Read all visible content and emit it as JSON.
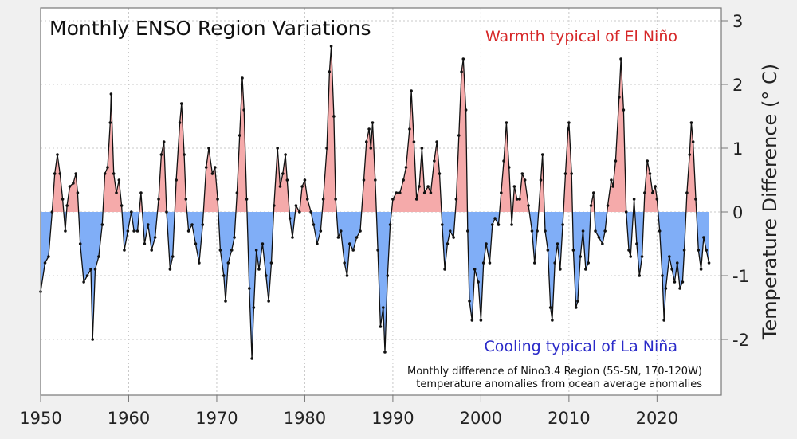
{
  "chart_data": {
    "type": "area",
    "title": "Monthly ENSO Region Variations",
    "ylabel": "Temperature Difference (° C)",
    "xlabel": "",
    "xlim": [
      1950,
      2027.3
    ],
    "ylim": [
      -2.875,
      3.2
    ],
    "grid": true,
    "x_ticks": [
      "1950",
      "1960",
      "1970",
      "1980",
      "1990",
      "2000",
      "2010",
      "2020"
    ],
    "y_ticks": [
      "-2",
      "-1",
      "0",
      "1",
      "2",
      "3"
    ],
    "annotations": {
      "warm": "Warmth typical of El Niño",
      "cool": "Cooling typical of La Niña",
      "note_line1": "Monthly difference of Nino3.4 Region (5S-5N, 170-120W)",
      "note_line2": "temperature anomalies from ocean average anomalies"
    },
    "colors": {
      "warm_fill": "#f5aaaa",
      "cool_fill": "#80aef7",
      "line": "#111111",
      "warm_text": "#d62728",
      "cool_text": "#2a2ac8"
    },
    "points": [
      [
        1950.0,
        -1.25
      ],
      [
        1950.5,
        -0.8
      ],
      [
        1950.9,
        -0.7
      ],
      [
        1951.3,
        0.0
      ],
      [
        1951.6,
        0.6
      ],
      [
        1951.9,
        0.9
      ],
      [
        1952.2,
        0.6
      ],
      [
        1952.5,
        0.2
      ],
      [
        1952.8,
        -0.3
      ],
      [
        1953.0,
        0.1
      ],
      [
        1953.3,
        0.4
      ],
      [
        1953.7,
        0.45
      ],
      [
        1954.0,
        0.6
      ],
      [
        1954.2,
        0.3
      ],
      [
        1954.5,
        -0.5
      ],
      [
        1954.9,
        -1.1
      ],
      [
        1955.3,
        -1.0
      ],
      [
        1955.7,
        -0.9
      ],
      [
        1955.9,
        -2.0
      ],
      [
        1956.2,
        -0.9
      ],
      [
        1956.6,
        -0.7
      ],
      [
        1957.0,
        -0.2
      ],
      [
        1957.3,
        0.6
      ],
      [
        1957.6,
        0.7
      ],
      [
        1957.9,
        1.4
      ],
      [
        1958.0,
        1.85
      ],
      [
        1958.3,
        0.6
      ],
      [
        1958.6,
        0.3
      ],
      [
        1958.9,
        0.5
      ],
      [
        1959.2,
        0.1
      ],
      [
        1959.5,
        -0.6
      ],
      [
        1959.9,
        -0.3
      ],
      [
        1960.3,
        0.0
      ],
      [
        1960.6,
        -0.3
      ],
      [
        1961.0,
        -0.3
      ],
      [
        1961.4,
        0.3
      ],
      [
        1961.8,
        -0.5
      ],
      [
        1962.2,
        -0.2
      ],
      [
        1962.6,
        -0.6
      ],
      [
        1963.0,
        -0.4
      ],
      [
        1963.4,
        0.2
      ],
      [
        1963.7,
        0.9
      ],
      [
        1964.0,
        1.1
      ],
      [
        1964.3,
        0.0
      ],
      [
        1964.7,
        -0.9
      ],
      [
        1965.0,
        -0.7
      ],
      [
        1965.4,
        0.5
      ],
      [
        1965.8,
        1.4
      ],
      [
        1966.0,
        1.7
      ],
      [
        1966.3,
        0.9
      ],
      [
        1966.5,
        0.2
      ],
      [
        1966.8,
        -0.3
      ],
      [
        1967.2,
        -0.2
      ],
      [
        1967.6,
        -0.5
      ],
      [
        1968.0,
        -0.8
      ],
      [
        1968.4,
        -0.2
      ],
      [
        1968.8,
        0.7
      ],
      [
        1969.1,
        1.0
      ],
      [
        1969.5,
        0.6
      ],
      [
        1969.8,
        0.7
      ],
      [
        1970.1,
        0.2
      ],
      [
        1970.4,
        -0.6
      ],
      [
        1970.8,
        -1.0
      ],
      [
        1971.0,
        -1.4
      ],
      [
        1971.3,
        -0.8
      ],
      [
        1971.7,
        -0.6
      ],
      [
        1972.0,
        -0.4
      ],
      [
        1972.3,
        0.3
      ],
      [
        1972.6,
        1.2
      ],
      [
        1972.9,
        2.1
      ],
      [
        1973.1,
        1.6
      ],
      [
        1973.4,
        0.2
      ],
      [
        1973.7,
        -1.2
      ],
      [
        1974.0,
        -2.3
      ],
      [
        1974.2,
        -1.5
      ],
      [
        1974.5,
        -0.6
      ],
      [
        1974.8,
        -0.9
      ],
      [
        1975.2,
        -0.5
      ],
      [
        1975.6,
        -1.0
      ],
      [
        1975.9,
        -1.4
      ],
      [
        1976.2,
        -0.8
      ],
      [
        1976.5,
        0.1
      ],
      [
        1976.9,
        1.0
      ],
      [
        1977.2,
        0.4
      ],
      [
        1977.5,
        0.6
      ],
      [
        1977.8,
        0.9
      ],
      [
        1978.0,
        0.5
      ],
      [
        1978.3,
        -0.1
      ],
      [
        1978.6,
        -0.4
      ],
      [
        1979.0,
        0.1
      ],
      [
        1979.4,
        0.0
      ],
      [
        1979.7,
        0.4
      ],
      [
        1980.0,
        0.5
      ],
      [
        1980.3,
        0.2
      ],
      [
        1980.7,
        0.0
      ],
      [
        1981.0,
        -0.2
      ],
      [
        1981.4,
        -0.5
      ],
      [
        1981.8,
        -0.3
      ],
      [
        1982.1,
        0.2
      ],
      [
        1982.5,
        1.0
      ],
      [
        1982.8,
        2.2
      ],
      [
        1983.0,
        2.6
      ],
      [
        1983.3,
        1.5
      ],
      [
        1983.5,
        0.2
      ],
      [
        1983.8,
        -0.4
      ],
      [
        1984.1,
        -0.3
      ],
      [
        1984.5,
        -0.8
      ],
      [
        1984.8,
        -1.0
      ],
      [
        1985.1,
        -0.5
      ],
      [
        1985.5,
        -0.6
      ],
      [
        1985.9,
        -0.4
      ],
      [
        1986.3,
        -0.3
      ],
      [
        1986.7,
        0.5
      ],
      [
        1987.0,
        1.1
      ],
      [
        1987.3,
        1.3
      ],
      [
        1987.5,
        1.0
      ],
      [
        1987.7,
        1.4
      ],
      [
        1988.0,
        0.5
      ],
      [
        1988.3,
        -0.6
      ],
      [
        1988.6,
        -1.8
      ],
      [
        1988.9,
        -1.5
      ],
      [
        1989.1,
        -2.2
      ],
      [
        1989.4,
        -1.0
      ],
      [
        1989.7,
        -0.2
      ],
      [
        1990.0,
        0.2
      ],
      [
        1990.4,
        0.3
      ],
      [
        1990.8,
        0.3
      ],
      [
        1991.2,
        0.5
      ],
      [
        1991.5,
        0.7
      ],
      [
        1991.9,
        1.3
      ],
      [
        1992.1,
        1.9
      ],
      [
        1992.4,
        1.1
      ],
      [
        1992.7,
        0.2
      ],
      [
        1993.0,
        0.4
      ],
      [
        1993.3,
        1.0
      ],
      [
        1993.6,
        0.3
      ],
      [
        1994.0,
        0.4
      ],
      [
        1994.3,
        0.3
      ],
      [
        1994.7,
        0.8
      ],
      [
        1995.0,
        1.1
      ],
      [
        1995.3,
        0.6
      ],
      [
        1995.6,
        -0.2
      ],
      [
        1995.9,
        -0.9
      ],
      [
        1996.2,
        -0.5
      ],
      [
        1996.5,
        -0.3
      ],
      [
        1996.9,
        -0.4
      ],
      [
        1997.2,
        0.2
      ],
      [
        1997.5,
        1.2
      ],
      [
        1997.8,
        2.2
      ],
      [
        1998.0,
        2.4
      ],
      [
        1998.3,
        1.6
      ],
      [
        1998.5,
        -0.3
      ],
      [
        1998.7,
        -1.4
      ],
      [
        1999.0,
        -1.7
      ],
      [
        1999.3,
        -0.9
      ],
      [
        1999.7,
        -1.1
      ],
      [
        2000.0,
        -1.7
      ],
      [
        2000.3,
        -0.8
      ],
      [
        2000.6,
        -0.5
      ],
      [
        2001.0,
        -0.8
      ],
      [
        2001.3,
        -0.2
      ],
      [
        2001.6,
        -0.1
      ],
      [
        2002.0,
        -0.2
      ],
      [
        2002.3,
        0.3
      ],
      [
        2002.6,
        0.8
      ],
      [
        2002.9,
        1.4
      ],
      [
        2003.2,
        0.7
      ],
      [
        2003.5,
        -0.2
      ],
      [
        2003.8,
        0.4
      ],
      [
        2004.1,
        0.2
      ],
      [
        2004.4,
        0.2
      ],
      [
        2004.7,
        0.6
      ],
      [
        2005.0,
        0.5
      ],
      [
        2005.4,
        0.1
      ],
      [
        2005.8,
        -0.3
      ],
      [
        2006.1,
        -0.8
      ],
      [
        2006.4,
        -0.3
      ],
      [
        2006.8,
        0.5
      ],
      [
        2007.0,
        0.9
      ],
      [
        2007.3,
        -0.3
      ],
      [
        2007.6,
        -0.6
      ],
      [
        2007.9,
        -1.5
      ],
      [
        2008.1,
        -1.7
      ],
      [
        2008.4,
        -0.8
      ],
      [
        2008.7,
        -0.5
      ],
      [
        2009.0,
        -0.9
      ],
      [
        2009.3,
        -0.2
      ],
      [
        2009.6,
        0.6
      ],
      [
        2009.9,
        1.3
      ],
      [
        2010.0,
        1.4
      ],
      [
        2010.3,
        0.6
      ],
      [
        2010.5,
        -0.6
      ],
      [
        2010.8,
        -1.5
      ],
      [
        2011.0,
        -1.4
      ],
      [
        2011.3,
        -0.7
      ],
      [
        2011.6,
        -0.3
      ],
      [
        2011.9,
        -0.9
      ],
      [
        2012.2,
        -0.8
      ],
      [
        2012.5,
        0.1
      ],
      [
        2012.8,
        0.3
      ],
      [
        2013.0,
        -0.3
      ],
      [
        2013.4,
        -0.4
      ],
      [
        2013.8,
        -0.5
      ],
      [
        2014.1,
        -0.3
      ],
      [
        2014.4,
        0.1
      ],
      [
        2014.8,
        0.5
      ],
      [
        2015.0,
        0.4
      ],
      [
        2015.3,
        0.8
      ],
      [
        2015.7,
        1.8
      ],
      [
        2015.9,
        2.4
      ],
      [
        2016.2,
        1.6
      ],
      [
        2016.5,
        0.0
      ],
      [
        2016.8,
        -0.6
      ],
      [
        2017.0,
        -0.7
      ],
      [
        2017.4,
        0.2
      ],
      [
        2017.7,
        -0.5
      ],
      [
        2018.0,
        -1.0
      ],
      [
        2018.3,
        -0.7
      ],
      [
        2018.6,
        0.3
      ],
      [
        2018.9,
        0.8
      ],
      [
        2019.2,
        0.6
      ],
      [
        2019.5,
        0.3
      ],
      [
        2019.8,
        0.4
      ],
      [
        2020.0,
        0.2
      ],
      [
        2020.3,
        -0.3
      ],
      [
        2020.6,
        -1.0
      ],
      [
        2020.8,
        -1.7
      ],
      [
        2021.0,
        -1.2
      ],
      [
        2021.4,
        -0.7
      ],
      [
        2021.7,
        -0.9
      ],
      [
        2022.0,
        -1.1
      ],
      [
        2022.3,
        -0.8
      ],
      [
        2022.6,
        -1.2
      ],
      [
        2022.9,
        -1.1
      ],
      [
        2023.1,
        -0.6
      ],
      [
        2023.4,
        0.3
      ],
      [
        2023.7,
        0.9
      ],
      [
        2023.9,
        1.4
      ],
      [
        2024.1,
        1.1
      ],
      [
        2024.4,
        0.2
      ],
      [
        2024.7,
        -0.6
      ],
      [
        2025.0,
        -0.9
      ],
      [
        2025.3,
        -0.4
      ],
      [
        2025.6,
        -0.6
      ],
      [
        2025.9,
        -0.8
      ]
    ]
  }
}
